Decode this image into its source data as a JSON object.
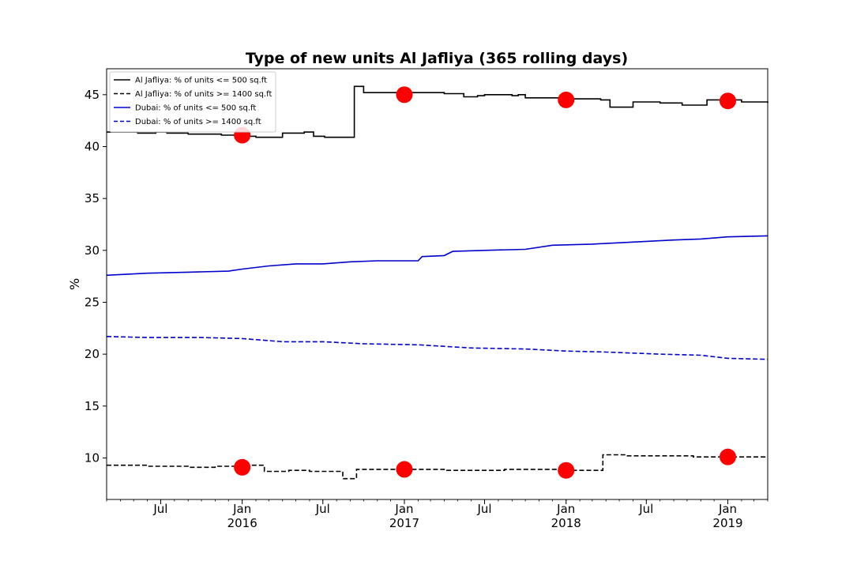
{
  "chart_data": {
    "type": "line",
    "title": "Type of new units Al Jafliya (365 rolling days)",
    "xlabel": "",
    "ylabel": "%",
    "x_range": [
      "2015-03-01",
      "2019-04-01"
    ],
    "ylim": [
      6,
      47.5
    ],
    "y_ticks": [
      10,
      15,
      20,
      25,
      30,
      35,
      40,
      45
    ],
    "x_ticks": [
      {
        "date": "2015-07-01",
        "label": "Jul",
        "sublabel": ""
      },
      {
        "date": "2016-01-01",
        "label": "Jan",
        "sublabel": "2016"
      },
      {
        "date": "2016-07-01",
        "label": "Jul",
        "sublabel": ""
      },
      {
        "date": "2017-01-01",
        "label": "Jan",
        "sublabel": "2017"
      },
      {
        "date": "2017-07-01",
        "label": "Jul",
        "sublabel": ""
      },
      {
        "date": "2018-01-01",
        "label": "Jan",
        "sublabel": "2018"
      },
      {
        "date": "2018-07-01",
        "label": "Jul",
        "sublabel": ""
      },
      {
        "date": "2019-01-01",
        "label": "Jan",
        "sublabel": "2019"
      }
    ],
    "grid": false,
    "legend_position": "top-left",
    "series": [
      {
        "name": "Al Jafliya: % of units <= 500 sq.ft",
        "color": "#000000",
        "dash": "solid",
        "step": true,
        "points": [
          [
            "2015-03-01",
            41.4
          ],
          [
            "2015-05-10",
            41.3
          ],
          [
            "2015-06-20",
            41.4
          ],
          [
            "2015-07-15",
            41.3
          ],
          [
            "2015-09-01",
            41.2
          ],
          [
            "2015-11-15",
            41.1
          ],
          [
            "2016-01-10",
            41.0
          ],
          [
            "2016-02-01",
            40.9
          ],
          [
            "2016-03-01",
            40.9
          ],
          [
            "2016-04-01",
            41.3
          ],
          [
            "2016-05-20",
            41.4
          ],
          [
            "2016-06-10",
            41.0
          ],
          [
            "2016-07-05",
            40.9
          ],
          [
            "2016-09-10",
            45.8
          ],
          [
            "2016-10-01",
            45.2
          ],
          [
            "2017-02-01",
            45.2
          ],
          [
            "2017-04-01",
            45.1
          ],
          [
            "2017-05-15",
            44.8
          ],
          [
            "2017-06-15",
            44.9
          ],
          [
            "2017-07-01",
            45.0
          ],
          [
            "2017-09-01",
            44.9
          ],
          [
            "2017-09-15",
            45.0
          ],
          [
            "2017-10-01",
            44.7
          ],
          [
            "2017-12-15",
            44.7
          ],
          [
            "2018-01-01",
            44.6
          ],
          [
            "2018-03-20",
            44.5
          ],
          [
            "2018-04-10",
            43.8
          ],
          [
            "2018-06-01",
            44.3
          ],
          [
            "2018-08-01",
            44.2
          ],
          [
            "2018-09-20",
            44.0
          ],
          [
            "2018-11-15",
            44.5
          ],
          [
            "2019-01-01",
            44.5
          ],
          [
            "2019-02-01",
            44.3
          ],
          [
            "2019-04-01",
            44.2
          ]
        ]
      },
      {
        "name": "Al Jafliya: % of units >= 1400 sq.ft",
        "color": "#000000",
        "dash": "dashed",
        "step": true,
        "points": [
          [
            "2015-03-01",
            9.3
          ],
          [
            "2015-06-01",
            9.2
          ],
          [
            "2015-09-01",
            9.1
          ],
          [
            "2015-11-01",
            9.2
          ],
          [
            "2016-01-20",
            9.3
          ],
          [
            "2016-02-20",
            8.7
          ],
          [
            "2016-04-15",
            8.8
          ],
          [
            "2016-06-01",
            8.7
          ],
          [
            "2016-08-01",
            8.7
          ],
          [
            "2016-08-15",
            8.0
          ],
          [
            "2016-09-15",
            8.9
          ],
          [
            "2016-12-01",
            8.9
          ],
          [
            "2017-03-01",
            8.9
          ],
          [
            "2017-04-01",
            8.8
          ],
          [
            "2017-08-15",
            8.9
          ],
          [
            "2017-12-15",
            8.8
          ],
          [
            "2018-03-10",
            8.8
          ],
          [
            "2018-03-25",
            10.3
          ],
          [
            "2018-05-15",
            10.2
          ],
          [
            "2018-10-15",
            10.1
          ],
          [
            "2019-01-15",
            10.1
          ],
          [
            "2019-04-01",
            10.1
          ]
        ]
      },
      {
        "name": "Dubai: % of units <= 500 sq.ft",
        "color": "#0000cc",
        "dash": "solid",
        "step": false,
        "points": [
          [
            "2015-03-01",
            27.6
          ],
          [
            "2015-06-01",
            27.8
          ],
          [
            "2015-09-01",
            27.9
          ],
          [
            "2015-12-01",
            28.0
          ],
          [
            "2016-01-01",
            28.2
          ],
          [
            "2016-03-01",
            28.5
          ],
          [
            "2016-05-01",
            28.7
          ],
          [
            "2016-07-01",
            28.7
          ],
          [
            "2016-09-01",
            28.9
          ],
          [
            "2016-11-01",
            29.0
          ],
          [
            "2017-02-01",
            29.0
          ],
          [
            "2017-02-10",
            29.4
          ],
          [
            "2017-04-01",
            29.5
          ],
          [
            "2017-04-20",
            29.9
          ],
          [
            "2017-07-01",
            30.0
          ],
          [
            "2017-10-01",
            30.1
          ],
          [
            "2017-12-01",
            30.5
          ],
          [
            "2018-03-01",
            30.6
          ],
          [
            "2018-06-01",
            30.8
          ],
          [
            "2018-09-01",
            31.0
          ],
          [
            "2018-11-01",
            31.1
          ],
          [
            "2019-01-01",
            31.3
          ],
          [
            "2019-04-01",
            31.4
          ]
        ]
      },
      {
        "name": "Dubai: % of units >= 1400 sq.ft",
        "color": "#0000cc",
        "dash": "dashed",
        "step": false,
        "points": [
          [
            "2015-03-01",
            21.7
          ],
          [
            "2015-06-01",
            21.6
          ],
          [
            "2015-10-01",
            21.6
          ],
          [
            "2016-01-01",
            21.5
          ],
          [
            "2016-04-01",
            21.2
          ],
          [
            "2016-07-01",
            21.2
          ],
          [
            "2016-10-01",
            21.0
          ],
          [
            "2017-02-01",
            20.9
          ],
          [
            "2017-06-01",
            20.6
          ],
          [
            "2017-10-01",
            20.5
          ],
          [
            "2018-01-01",
            20.3
          ],
          [
            "2018-04-01",
            20.2
          ],
          [
            "2018-08-01",
            20.0
          ],
          [
            "2018-11-01",
            19.9
          ],
          [
            "2019-01-01",
            19.6
          ],
          [
            "2019-04-01",
            19.5
          ]
        ]
      }
    ],
    "markers": {
      "color": "#ff0000",
      "points": [
        [
          "2016-01-01",
          41.1
        ],
        [
          "2017-01-01",
          45.0
        ],
        [
          "2018-01-01",
          44.5
        ],
        [
          "2019-01-01",
          44.4
        ],
        [
          "2016-01-01",
          9.1
        ],
        [
          "2017-01-01",
          8.9
        ],
        [
          "2018-01-01",
          8.8
        ],
        [
          "2019-01-01",
          10.1
        ]
      ]
    }
  }
}
